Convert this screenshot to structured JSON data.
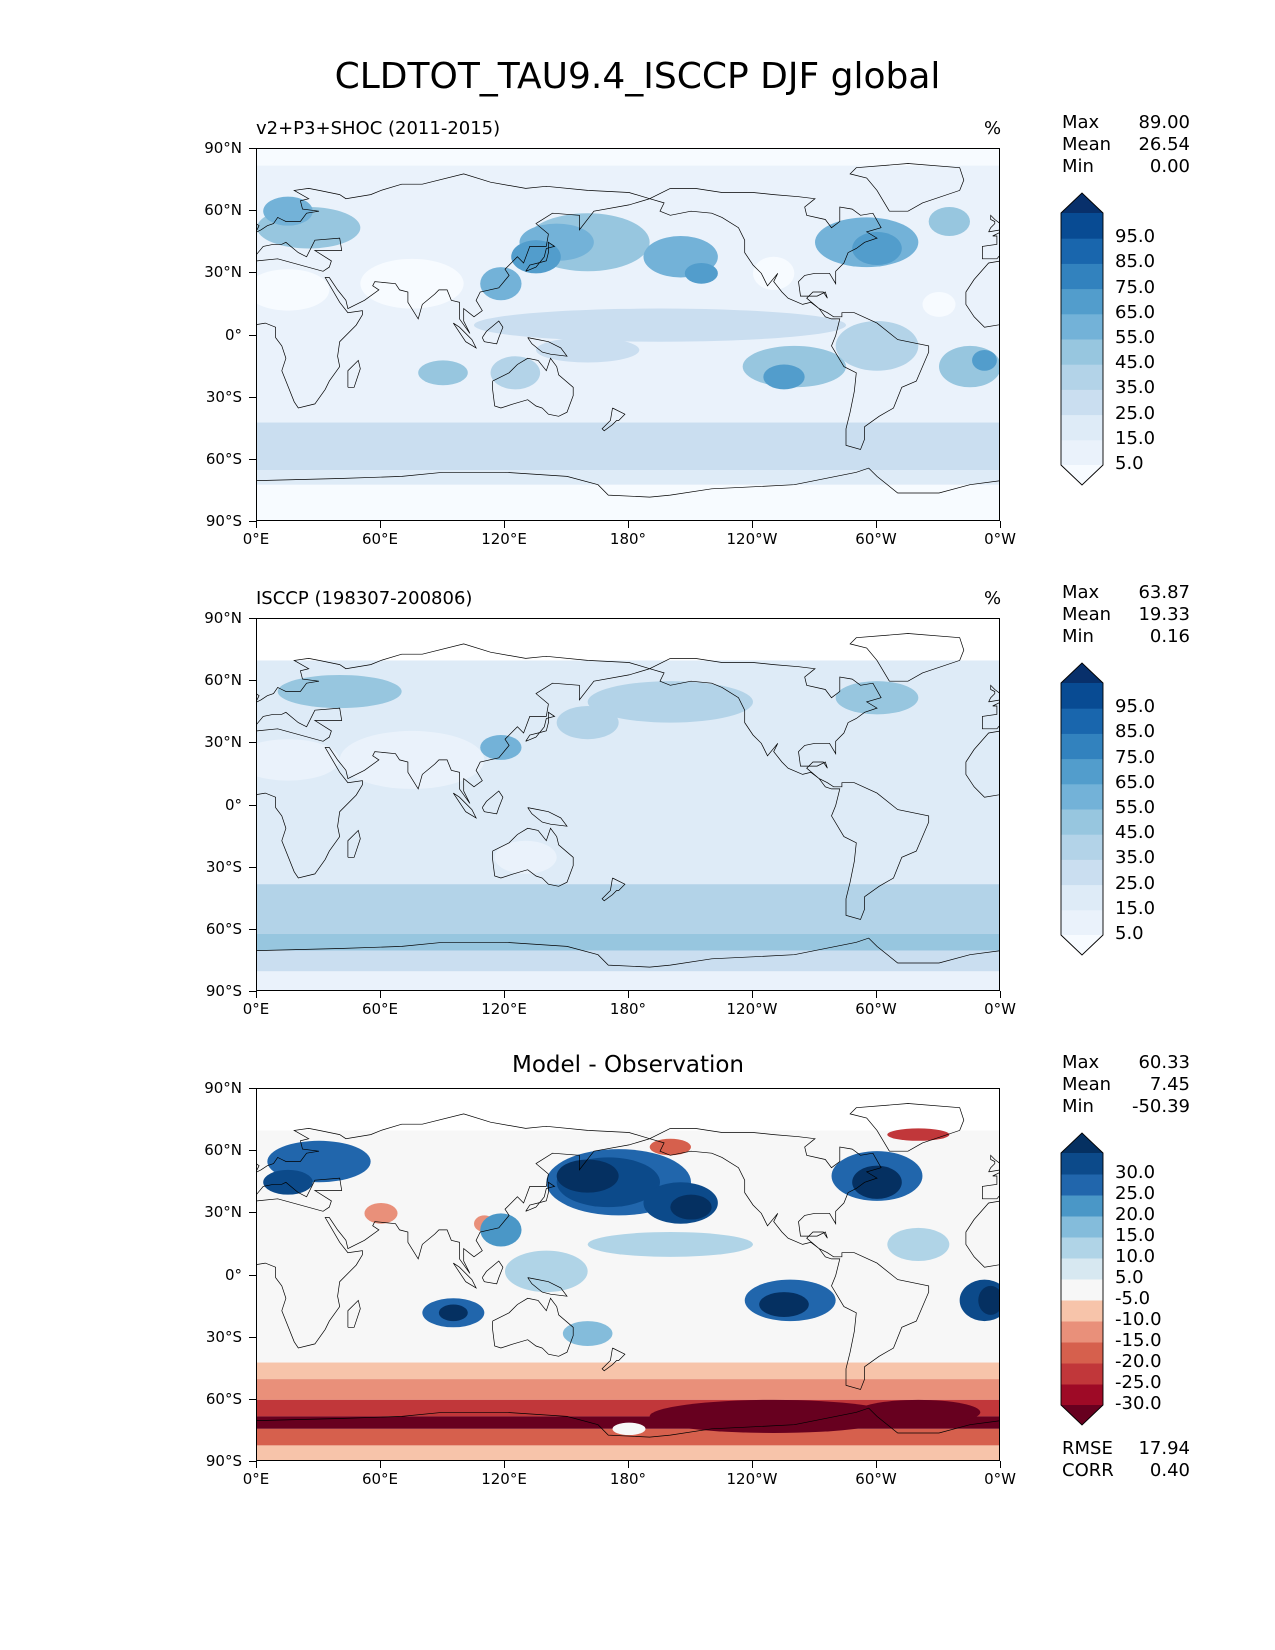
{
  "figure": {
    "title": "CLDTOT_TAU9.4_ISCCP DJF global"
  },
  "axes": {
    "lat_labels": [
      "90°N",
      "60°N",
      "30°N",
      "0°",
      "30°S",
      "60°S",
      "90°S"
    ],
    "lon_labels": [
      "0°E",
      "60°E",
      "120°E",
      "180°",
      "120°W",
      "60°W",
      "0°W"
    ]
  },
  "panels": [
    {
      "id": "model",
      "title_left": "v2+P3+SHOC (2011-2015)",
      "title_center": "",
      "units": "%",
      "stats": [
        {
          "key": "Max",
          "value": "89.00"
        },
        {
          "key": "Mean",
          "value": "26.54"
        },
        {
          "key": "Min",
          "value": "0.00"
        }
      ],
      "colorbar": {
        "labels": [
          "95.0",
          "85.0",
          "75.0",
          "65.0",
          "55.0",
          "45.0",
          "35.0",
          "25.0",
          "15.0",
          "5.0"
        ],
        "colors": [
          "#f7fbff",
          "#eaf2fb",
          "#deebf7",
          "#cadef0",
          "#b3d3e8",
          "#97c6df",
          "#73b2d8",
          "#529dcc",
          "#3282be",
          "#1966ad",
          "#084b93",
          "#08306b"
        ]
      }
    },
    {
      "id": "obs",
      "title_left": "ISCCP (198307-200806)",
      "title_center": "",
      "units": "%",
      "stats": [
        {
          "key": "Max",
          "value": "63.87"
        },
        {
          "key": "Mean",
          "value": "19.33"
        },
        {
          "key": "Min",
          "value": "0.16"
        }
      ],
      "colorbar": {
        "labels": [
          "95.0",
          "85.0",
          "75.0",
          "65.0",
          "55.0",
          "45.0",
          "35.0",
          "25.0",
          "15.0",
          "5.0"
        ],
        "colors": [
          "#f7fbff",
          "#eaf2fb",
          "#deebf7",
          "#cadef0",
          "#b3d3e8",
          "#97c6df",
          "#73b2d8",
          "#529dcc",
          "#3282be",
          "#1966ad",
          "#084b93",
          "#08306b"
        ]
      }
    },
    {
      "id": "diff",
      "title_left": "",
      "title_center": "Model - Observation",
      "units": "",
      "stats": [
        {
          "key": "Max",
          "value": "60.33"
        },
        {
          "key": "Mean",
          "value": "7.45"
        },
        {
          "key": "Min",
          "value": "-50.39"
        }
      ],
      "footer_stats": [
        {
          "key": "RMSE",
          "value": "17.94"
        },
        {
          "key": "CORR",
          "value": "0.40"
        }
      ],
      "colorbar": {
        "labels": [
          "30.0",
          "25.0",
          "20.0",
          "15.0",
          "10.0",
          "5.0",
          "-5.0",
          "-10.0",
          "-15.0",
          "-20.0",
          "-25.0",
          "-30.0"
        ],
        "colors": [
          "#67001f",
          "#9e0a26",
          "#c1373a",
          "#d6604d",
          "#e9907a",
          "#f7c4aa",
          "#f7f7f7",
          "#d7e8f1",
          "#b0d4e7",
          "#84bcdb",
          "#4a97c7",
          "#2166ac",
          "#0c4a8a",
          "#053061"
        ]
      }
    }
  ]
}
